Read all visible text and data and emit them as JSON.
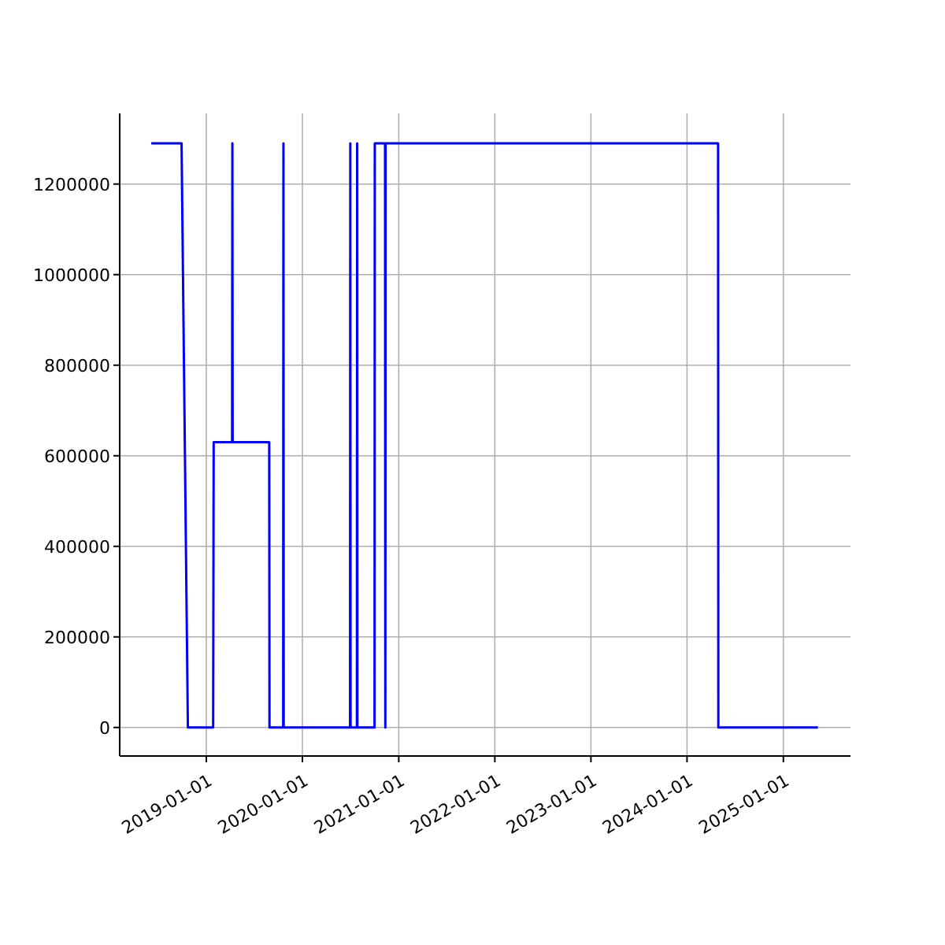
{
  "chart_data": {
    "type": "line",
    "x": [
      "2018-06-06",
      "2018-09-29",
      "2018-10-23",
      "2019-01-27",
      "2019-01-29",
      "2019-04-09",
      "2019-04-10",
      "2019-04-11",
      "2019-08-28",
      "2019-08-29",
      "2019-10-20",
      "2019-10-21",
      "2019-10-22",
      "2020-06-30",
      "2020-07-01",
      "2020-07-02",
      "2020-07-26",
      "2020-07-27",
      "2020-07-28",
      "2020-10-01",
      "2020-10-02",
      "2020-11-10",
      "2020-11-11",
      "2020-11-12",
      "2024-04-28",
      "2024-04-29",
      "2025-05-12"
    ],
    "series": [
      {
        "color": "#0000ff",
        "values": [
          1290000,
          1290000,
          0,
          0,
          630000,
          630000,
          1290000,
          630000,
          630000,
          0,
          0,
          1290000,
          0,
          0,
          1290000,
          0,
          0,
          1290000,
          0,
          0,
          1290000,
          1290000,
          0,
          1290000,
          1290000,
          0,
          0
        ]
      }
    ],
    "xlim": [
      "2018-02-06",
      "2025-09-13"
    ],
    "xticks": [
      "2019-01-01",
      "2020-01-01",
      "2021-01-01",
      "2022-01-01",
      "2023-01-01",
      "2024-01-01",
      "2025-01-01"
    ],
    "ylim": [
      -63000,
      1356000
    ],
    "yticks": [
      0,
      200000,
      400000,
      600000,
      800000,
      1000000,
      1200000
    ],
    "grid": true,
    "marker": "none",
    "line_style": "solid",
    "legend": false
  }
}
